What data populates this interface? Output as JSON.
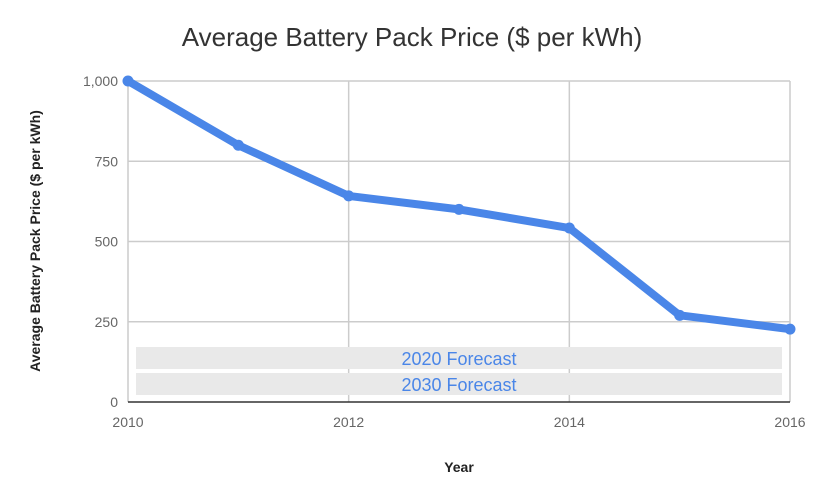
{
  "chart_data": {
    "type": "line",
    "title": "Average Battery Pack Price ($ per kWh)",
    "xlabel": "Year",
    "ylabel": "Average Battery Pack Price ($ per kWh)",
    "x": [
      2010,
      2011,
      2012,
      2013,
      2014,
      2015,
      2016
    ],
    "series": [
      {
        "values": [
          1000,
          800,
          642,
          600,
          542,
          270,
          227
        ]
      }
    ],
    "xlim": [
      2010,
      2016
    ],
    "ylim": [
      0,
      1000
    ],
    "x_ticks": [
      "2010",
      "2012",
      "2014",
      "2016"
    ],
    "y_ticks": [
      "0",
      "250",
      "500",
      "750",
      "1,000"
    ],
    "annotations": [
      "2020 Forecast",
      "2030 Forecast"
    ],
    "grid": true,
    "colors": {
      "line": "#4a86e8",
      "band": "#e9e9e9",
      "band_text": "#4a86e8"
    }
  }
}
